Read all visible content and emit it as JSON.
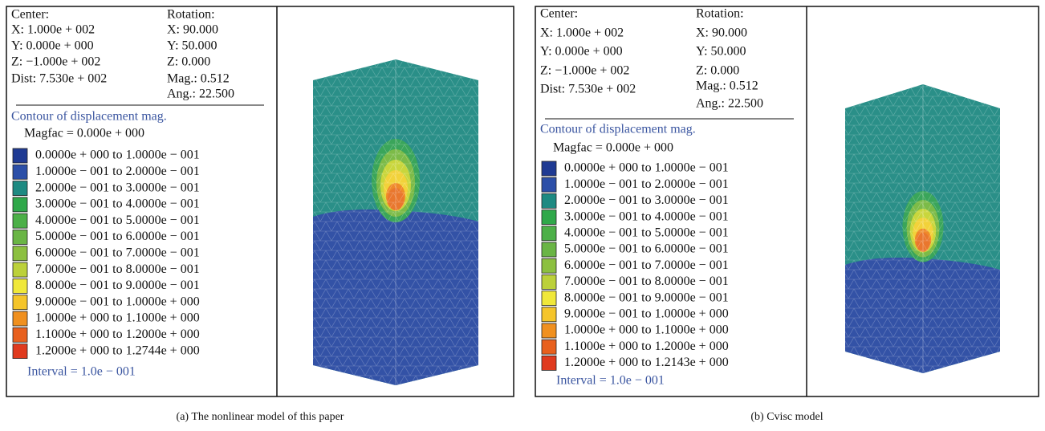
{
  "panels": [
    {
      "caption": "(a) The nonlinear model of this paper",
      "center_label": "Center:",
      "center": [
        "X: 1.000e + 002",
        "Y: 0.000e + 000",
        "Z: −1.000e + 002"
      ],
      "dist": "Dist: 7.530e + 002",
      "rotation_label": "Rotation:",
      "rotation": [
        "X: 90.000",
        "Y: 50.000",
        "Z: 0.000"
      ],
      "mag": "Mag.: 0.512",
      "ang": "Ang.: 22.500",
      "contour_title": "Contour of displacement mag.",
      "magfac": "Magfac = 0.000e + 000",
      "legend": [
        {
          "label": "0.0000e + 000 to 1.0000e − 001",
          "color": "#1f3a93"
        },
        {
          "label": "1.0000e − 001 to 2.0000e − 001",
          "color": "#2c4fa8"
        },
        {
          "label": "2.0000e − 001 to 3.0000e − 001",
          "color": "#1e8a82"
        },
        {
          "label": "3.0000e − 001 to 4.0000e − 001",
          "color": "#2fa84a"
        },
        {
          "label": "4.0000e − 001 to 5.0000e − 001",
          "color": "#4cb048"
        },
        {
          "label": "5.0000e − 001 to 6.0000e − 001",
          "color": "#6ab545"
        },
        {
          "label": "6.0000e − 001 to 7.0000e − 001",
          "color": "#8cc040"
        },
        {
          "label": "7.0000e − 001 to 8.0000e − 001",
          "color": "#bcd13a"
        },
        {
          "label": "8.0000e − 001 to 9.0000e − 001",
          "color": "#f0e83a"
        },
        {
          "label": "9.0000e − 001 to 1.0000e + 000",
          "color": "#f5c52a"
        },
        {
          "label": "1.0000e + 000 to 1.1000e + 000",
          "color": "#f0901f"
        },
        {
          "label": "1.1000e + 000 to 1.2000e + 000",
          "color": "#e8601e"
        },
        {
          "label": "1.2000e + 000 to 1.2744e + 000",
          "color": "#e03a1e"
        }
      ],
      "interval": "Interval = 1.0e − 001"
    },
    {
      "caption": "(b) Cvisc model",
      "center_label": "Center:",
      "center": [
        "X: 1.000e + 002",
        "Y: 0.000e + 000",
        "Z: −1.000e + 002"
      ],
      "dist": "Dist: 7.530e + 002",
      "rotation_label": "Rotation:",
      "rotation": [
        "X: 90.000",
        "Y: 50.000",
        "Z: 0.000"
      ],
      "mag": "Mag.: 0.512",
      "ang": "Ang.: 22.500",
      "contour_title": "Contour of displacement mag.",
      "magfac": "Magfac = 0.000e + 000",
      "legend": [
        {
          "label": "0.0000e + 000 to 1.0000e − 001",
          "color": "#1f3a93"
        },
        {
          "label": "1.0000e − 001 to 2.0000e − 001",
          "color": "#2c4fa8"
        },
        {
          "label": "2.0000e − 001 to 3.0000e − 001",
          "color": "#1e8a82"
        },
        {
          "label": "3.0000e − 001 to 4.0000e − 001",
          "color": "#2fa84a"
        },
        {
          "label": "4.0000e − 001 to 5.0000e − 001",
          "color": "#4cb048"
        },
        {
          "label": "5.0000e − 001 to 6.0000e − 001",
          "color": "#6ab545"
        },
        {
          "label": "6.0000e − 001 to 7.0000e − 001",
          "color": "#8cc040"
        },
        {
          "label": "7.0000e − 001 to 8.0000e − 001",
          "color": "#bcd13a"
        },
        {
          "label": "8.0000e − 001 to 9.0000e − 001",
          "color": "#f0e83a"
        },
        {
          "label": "9.0000e − 001 to 1.0000e + 000",
          "color": "#f5c52a"
        },
        {
          "label": "1.0000e + 000 to 1.1000e + 000",
          "color": "#f0901f"
        },
        {
          "label": "1.1000e + 000 to 1.2000e + 000",
          "color": "#e8601e"
        },
        {
          "label": "1.2000e + 000 to 1.2143e + 000",
          "color": "#e03a1e"
        }
      ],
      "interval": "Interval = 1.0e − 001"
    }
  ]
}
